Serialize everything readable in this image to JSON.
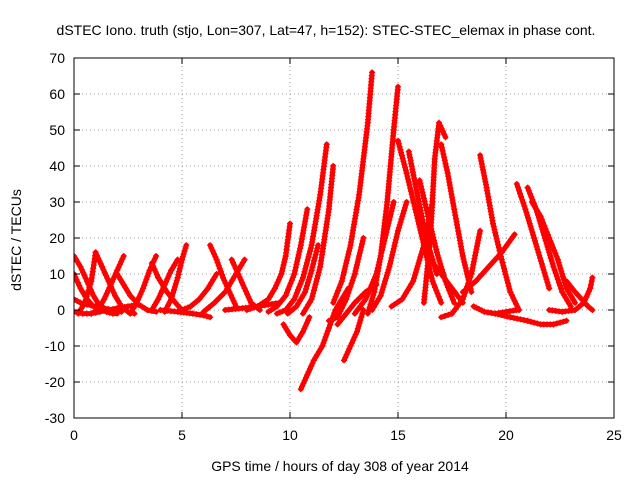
{
  "chart_data": {
    "type": "scatter",
    "title": "dSTEC Iono. truth (stjo, Lon=307, Lat=47, h=152): STEC-STEC_elemax in phase cont.",
    "xlabel": "GPS time / hours of day 308 of year 2014",
    "ylabel": "dSTEC  / TECUs",
    "xlim": [
      0,
      25
    ],
    "ylim": [
      -30,
      70
    ],
    "xticks": [
      0,
      5,
      10,
      15,
      20,
      25
    ],
    "yticks": [
      -30,
      -20,
      -10,
      0,
      10,
      20,
      30,
      40,
      50,
      60,
      70
    ],
    "grid": true,
    "marker": "plus",
    "color": "#ff0000",
    "series": [
      {
        "x": [
          0.0,
          0.3,
          0.6,
          0.9,
          1.2,
          1.5,
          1.8,
          2.0
        ],
        "y": [
          15,
          12,
          8,
          4,
          1,
          -0.5,
          -1,
          -1
        ]
      },
      {
        "x": [
          0.0,
          0.3,
          0.6,
          1.0,
          1.4,
          1.8,
          2.2
        ],
        "y": [
          3,
          2,
          1.5,
          1,
          0.5,
          0,
          -0.5
        ]
      },
      {
        "x": [
          0.0,
          0.4,
          0.8,
          1.2,
          1.6,
          2.0,
          2.5,
          3.0
        ],
        "y": [
          -0.5,
          -1,
          -1,
          -0.5,
          0,
          0.5,
          1,
          1.5
        ]
      },
      {
        "x": [
          0.0,
          0.3,
          0.6,
          0.9
        ],
        "y": [
          10,
          6,
          3,
          1
        ]
      },
      {
        "x": [
          0.2,
          0.5,
          0.8,
          1.0
        ],
        "y": [
          -1,
          2,
          8,
          16
        ]
      },
      {
        "x": [
          1.0,
          1.3,
          1.6,
          1.9,
          2.2,
          2.5,
          2.8
        ],
        "y": [
          16,
          12,
          8,
          4,
          1,
          -0.5,
          -1
        ]
      },
      {
        "x": [
          0.8,
          1.1,
          1.4,
          1.7,
          2.0,
          2.3
        ],
        "y": [
          -1,
          0,
          3,
          7,
          11,
          15
        ]
      },
      {
        "x": [
          2.0,
          2.3,
          2.6,
          3.0,
          3.4,
          3.8
        ],
        "y": [
          10,
          7,
          4,
          1.5,
          0,
          -0.5
        ]
      },
      {
        "x": [
          2.6,
          2.9,
          3.2,
          3.5,
          3.8
        ],
        "y": [
          -1,
          2,
          6,
          11,
          15
        ]
      },
      {
        "x": [
          3.6,
          3.9,
          4.2,
          4.5,
          4.8
        ],
        "y": [
          0,
          3,
          7,
          11,
          14
        ]
      },
      {
        "x": [
          3.6,
          3.9,
          4.3,
          4.7,
          5.0
        ],
        "y": [
          13,
          9,
          5,
          2,
          0
        ]
      },
      {
        "x": [
          4.2,
          4.5,
          4.8,
          5.0,
          5.2
        ],
        "y": [
          -0.5,
          3,
          9,
          14,
          18
        ]
      },
      {
        "x": [
          5.0,
          5.4,
          5.8,
          6.2,
          6.6
        ],
        "y": [
          0,
          1,
          3,
          6,
          10
        ]
      },
      {
        "x": [
          6.3,
          6.6,
          6.9,
          7.2,
          7.5
        ],
        "y": [
          18,
          14,
          9,
          5,
          1
        ]
      },
      {
        "x": [
          6.0,
          6.5,
          7.0,
          7.5,
          7.9
        ],
        "y": [
          -0.5,
          2,
          5,
          10,
          14
        ]
      },
      {
        "x": [
          7.3,
          7.6,
          7.9,
          8.2,
          8.6
        ],
        "y": [
          14,
          10,
          6,
          2,
          0
        ]
      },
      {
        "x": [
          4.0,
          4.8,
          5.5,
          6.0,
          6.3
        ],
        "y": [
          0,
          -0.5,
          -1,
          -1.5,
          -2
        ]
      },
      {
        "x": [
          7.0,
          7.8,
          8.5,
          9.0,
          9.5
        ],
        "y": [
          0,
          0.5,
          1,
          1.5,
          2
        ]
      },
      {
        "x": [
          8.0,
          8.5,
          9.0,
          9.3,
          9.6,
          9.8,
          10.0
        ],
        "y": [
          0,
          1,
          3,
          6,
          10,
          15,
          24
        ]
      },
      {
        "x": [
          9.0,
          9.4,
          9.8,
          10.2,
          10.5,
          10.8
        ],
        "y": [
          -0.5,
          1,
          4,
          10,
          18,
          28
        ]
      },
      {
        "x": [
          9.4,
          9.8,
          10.2,
          10.6,
          11.0,
          11.4,
          11.7
        ],
        "y": [
          -1,
          0,
          3,
          9,
          18,
          32,
          46
        ]
      },
      {
        "x": [
          9.9,
          10.3,
          10.7,
          11.0,
          11.3
        ],
        "y": [
          -1,
          1,
          5,
          11,
          18
        ]
      },
      {
        "x": [
          10.6,
          11.0,
          11.4,
          11.8,
          12.0
        ],
        "y": [
          -1,
          3,
          12,
          28,
          40
        ]
      },
      {
        "x": [
          9.7,
          10.0,
          10.3,
          10.6,
          10.9
        ],
        "y": [
          -4,
          -7,
          -9,
          -6,
          -2
        ]
      },
      {
        "x": [
          10.5,
          10.8,
          11.1,
          11.5
        ],
        "y": [
          -22,
          -18,
          -14,
          -10
        ]
      },
      {
        "x": [
          11.5,
          11.8,
          12.1,
          12.4,
          12.7
        ],
        "y": [
          -10,
          -5,
          0,
          3,
          6
        ]
      },
      {
        "x": [
          12.0,
          12.4,
          12.8,
          13.2,
          13.6,
          13.8
        ],
        "y": [
          2,
          8,
          18,
          32,
          52,
          66
        ]
      },
      {
        "x": [
          11.8,
          12.2,
          12.6,
          13.0,
          13.4
        ],
        "y": [
          -3,
          -2,
          3,
          10,
          20
        ]
      },
      {
        "x": [
          12.5,
          12.8,
          13.1,
          13.3,
          13.4
        ],
        "y": [
          -14,
          -10,
          -6,
          -2,
          0
        ]
      },
      {
        "x": [
          13.6,
          13.9,
          14.2,
          14.5,
          14.8,
          15.0
        ],
        "y": [
          -1,
          5,
          15,
          30,
          50,
          62
        ]
      },
      {
        "x": [
          12.2,
          12.6,
          13.0,
          13.5,
          14.0
        ],
        "y": [
          -4,
          -1,
          2,
          5,
          7
        ]
      },
      {
        "x": [
          13.0,
          13.5,
          14.0,
          14.4,
          14.8
        ],
        "y": [
          -1,
          3,
          10,
          20,
          30
        ]
      },
      {
        "x": [
          13.8,
          14.2,
          14.6,
          15.0,
          15.4
        ],
        "y": [
          0,
          4,
          12,
          22,
          30
        ]
      },
      {
        "x": [
          15.0,
          15.4,
          15.8,
          16.2,
          16.6,
          17.0
        ],
        "y": [
          47,
          38,
          28,
          18,
          8,
          2
        ]
      },
      {
        "x": [
          15.5,
          15.8,
          16.1,
          16.4,
          16.8
        ],
        "y": [
          44,
          35,
          26,
          18,
          10
        ]
      },
      {
        "x": [
          16.0,
          16.4,
          16.8,
          17.2,
          17.6
        ],
        "y": [
          36,
          26,
          16,
          8,
          2
        ]
      },
      {
        "x": [
          14.7,
          15.2,
          15.7,
          16.2,
          16.6
        ],
        "y": [
          1,
          3,
          8,
          18,
          30
        ]
      },
      {
        "x": [
          16.2,
          16.5,
          16.7,
          16.9,
          17.2
        ],
        "y": [
          2,
          20,
          42,
          52,
          48
        ]
      },
      {
        "x": [
          17.0,
          17.3,
          17.6,
          18.0,
          18.4
        ],
        "y": [
          46,
          38,
          28,
          15,
          5
        ]
      },
      {
        "x": [
          16.5,
          17.0,
          17.5,
          18.0
        ],
        "y": [
          14,
          10,
          6,
          2
        ]
      },
      {
        "x": [
          17.0,
          17.5,
          18.0,
          18.4,
          18.8
        ],
        "y": [
          -2,
          -1,
          3,
          10,
          22
        ]
      },
      {
        "x": [
          18.8,
          19.1,
          19.4,
          19.8,
          20.2,
          20.6
        ],
        "y": [
          43,
          34,
          24,
          14,
          5,
          0
        ]
      },
      {
        "x": [
          18.0,
          18.6,
          19.2,
          19.8,
          20.4
        ],
        "y": [
          5,
          8,
          12,
          16,
          21
        ]
      },
      {
        "x": [
          18.5,
          19.0,
          19.5,
          20.0,
          20.5
        ],
        "y": [
          1,
          -0.5,
          -1,
          -0.5,
          0
        ]
      },
      {
        "x": [
          20.5,
          20.9,
          21.3,
          21.7,
          22.0
        ],
        "y": [
          35,
          28,
          20,
          12,
          6
        ]
      },
      {
        "x": [
          21.0,
          21.4,
          21.8,
          22.2,
          22.6,
          23.0
        ],
        "y": [
          34,
          28,
          20,
          12,
          5,
          1
        ]
      },
      {
        "x": [
          21.2,
          21.6,
          22.0,
          22.4,
          22.8,
          23.2
        ],
        "y": [
          30,
          26,
          20,
          14,
          6,
          2
        ]
      },
      {
        "x": [
          19.5,
          20.2,
          21.0,
          21.6,
          22.2,
          22.8
        ],
        "y": [
          -1,
          -2,
          -3,
          -4,
          -4,
          -3
        ]
      },
      {
        "x": [
          22.0,
          22.6,
          23.2,
          23.6,
          23.9,
          24.0
        ],
        "y": [
          0,
          -0.5,
          0,
          2,
          6,
          9
        ]
      },
      {
        "x": [
          22.8,
          23.2,
          23.5,
          23.8,
          24.0
        ],
        "y": [
          8,
          5,
          3,
          1,
          0
        ]
      }
    ]
  }
}
